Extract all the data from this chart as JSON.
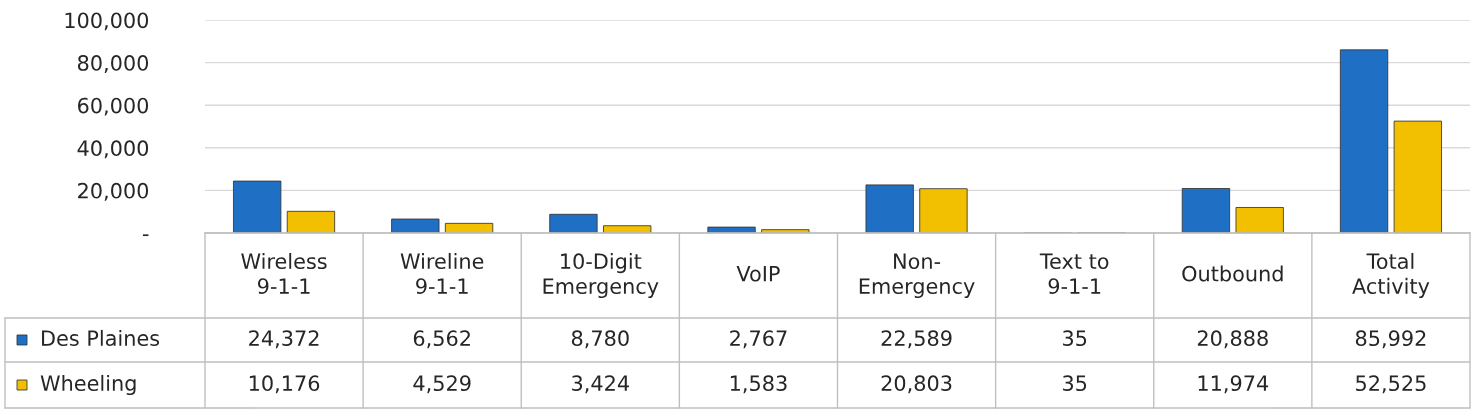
{
  "chart_data": {
    "type": "bar",
    "categories": [
      "Wireless\n9-1-1",
      "Wireline\n9-1-1",
      "10-Digit\nEmergency",
      "VoIP",
      "Non-\nEmergency",
      "Text to\n9-1-1",
      "Outbound",
      "Total\nActivity"
    ],
    "series": [
      {
        "name": "Des Plaines",
        "color": "#1f6fc5",
        "values": [
          24372,
          6562,
          8780,
          2767,
          22589,
          35,
          20888,
          85992
        ],
        "value_labels": [
          "24,372",
          "6,562",
          "8,780",
          "2,767",
          "22,589",
          "35",
          "20,888",
          "85,992"
        ]
      },
      {
        "name": "Wheeling",
        "color": "#f2c000",
        "values": [
          10176,
          4529,
          3424,
          1583,
          20803,
          35,
          11974,
          52525
        ],
        "value_labels": [
          "10,176",
          "4,529",
          "3,424",
          "1,583",
          "20,803",
          "35",
          "11,974",
          "52,525"
        ]
      }
    ],
    "ylim": [
      0,
      100000
    ],
    "yticks": [
      {
        "value": 0,
        "label": "-"
      },
      {
        "value": 20000,
        "label": "20,000"
      },
      {
        "value": 40000,
        "label": "40,000"
      },
      {
        "value": 60000,
        "label": "60,000"
      },
      {
        "value": 80000,
        "label": "80,000"
      },
      {
        "value": 100000,
        "label": "100,000"
      }
    ],
    "grid": "y",
    "legend": "bottom left"
  }
}
